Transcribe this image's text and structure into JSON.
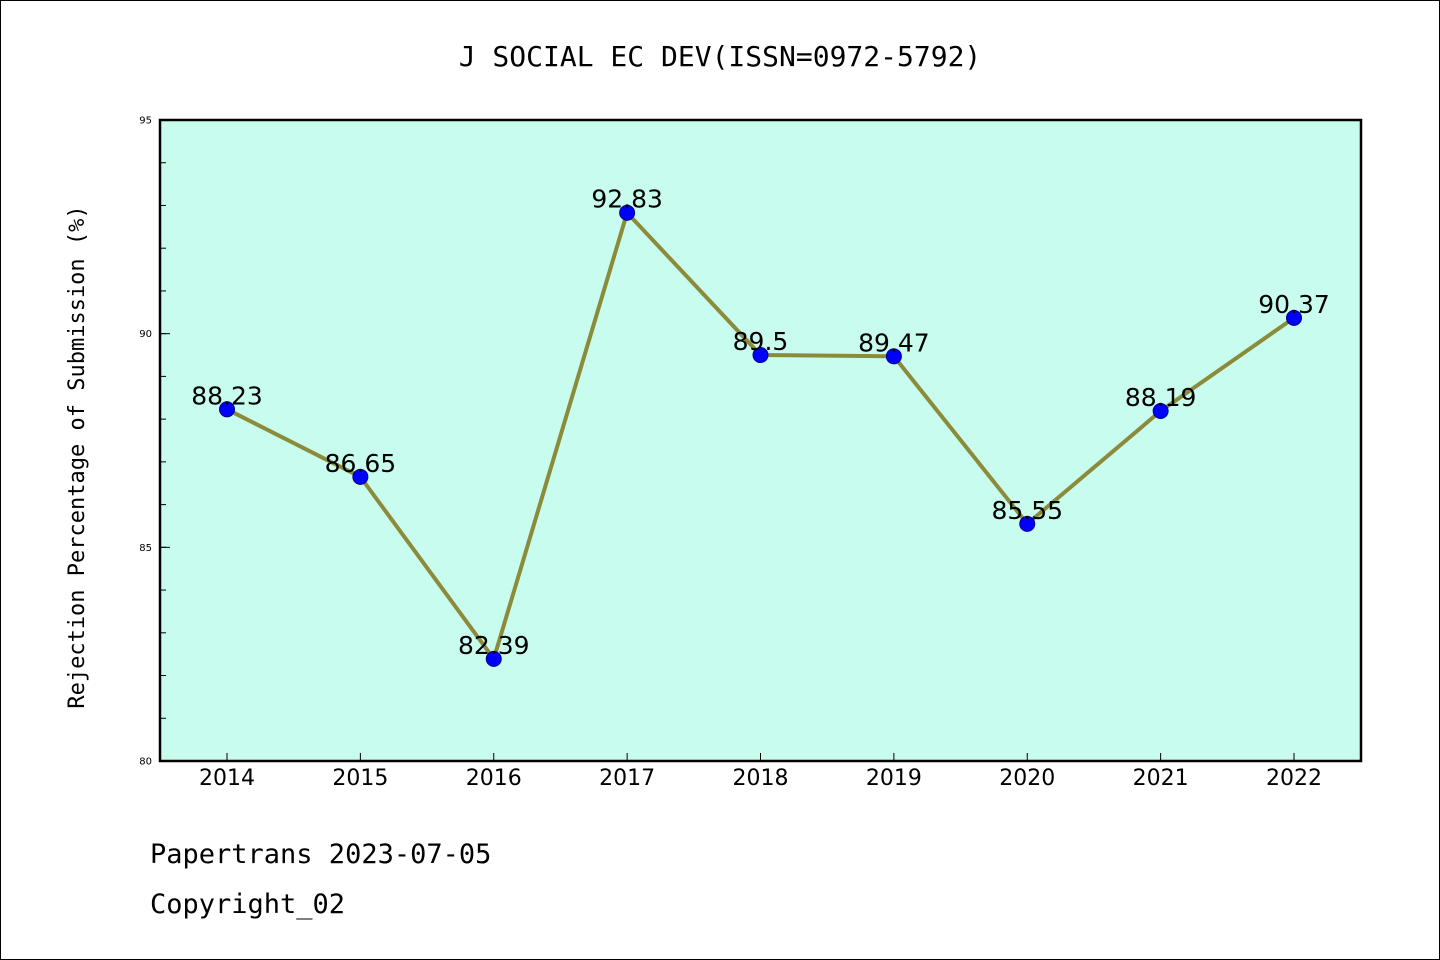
{
  "chart_data": {
    "type": "line",
    "title": "J SOCIAL EC DEV(ISSN=0972-5792)",
    "xlabel": "",
    "ylabel": "Rejection Percentage of Submission (%)",
    "categories": [
      "2014",
      "2015",
      "2016",
      "2017",
      "2018",
      "2019",
      "2020",
      "2021",
      "2022"
    ],
    "values": [
      88.23,
      86.65,
      82.39,
      92.83,
      89.5,
      89.47,
      85.55,
      88.19,
      90.37
    ],
    "data_labels": [
      "88.23",
      "86.65",
      "82.39",
      "92.83",
      "89.5",
      "89.47",
      "85.55",
      "88.19",
      "90.37"
    ],
    "ylim": [
      80,
      95
    ],
    "yticks": [
      80,
      85,
      90,
      95
    ],
    "grid": false,
    "legend": "none",
    "colors": {
      "plot_background": "#c8fcee",
      "line": "#8b8b3a",
      "marker": "#0000ff"
    }
  },
  "footer": {
    "line1": "Papertrans 2023-07-05",
    "line2": "Copyright_02"
  }
}
